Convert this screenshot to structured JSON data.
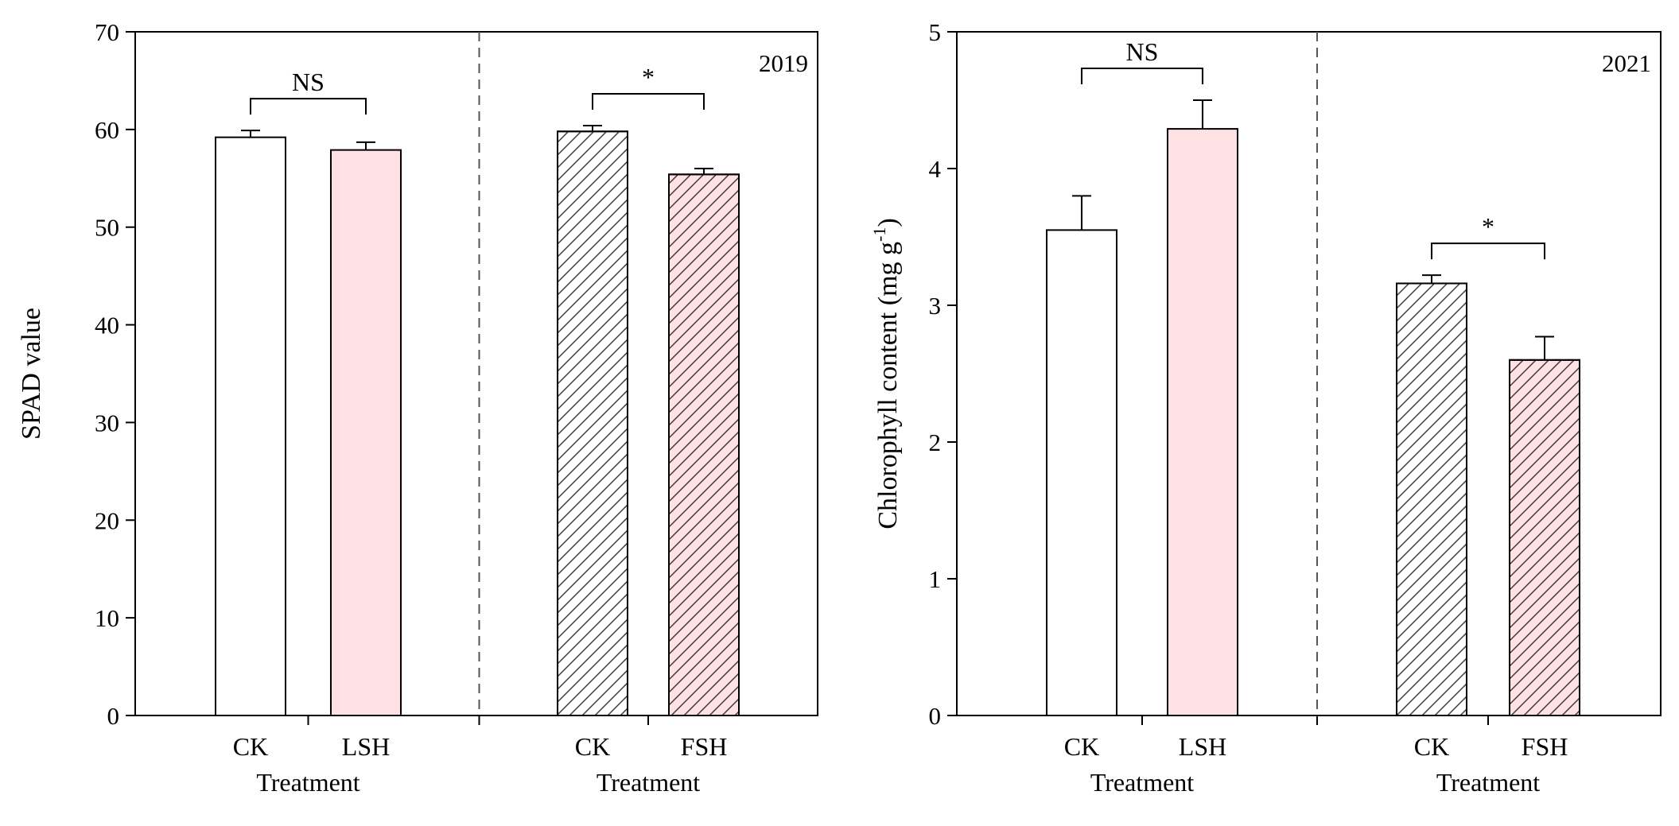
{
  "chart_data": [
    {
      "type": "bar",
      "year_label": "2019",
      "ylabel": "SPAD value",
      "ylim": [
        0,
        70
      ],
      "yticks": [
        0,
        10,
        20,
        30,
        40,
        50,
        60,
        70
      ],
      "groups": [
        {
          "xlabel": "Treatment",
          "significance": "NS",
          "bars": [
            {
              "category": "CK",
              "value": 59.2,
              "error": 0.7,
              "fill": "#ffffff",
              "hatch": false
            },
            {
              "category": "LSH",
              "value": 57.9,
              "error": 0.8,
              "fill": "#ffe0e3",
              "hatch": false
            }
          ]
        },
        {
          "xlabel": "Treatment",
          "significance": "*",
          "bars": [
            {
              "category": "CK",
              "value": 59.8,
              "error": 0.6,
              "fill": "#ffffff",
              "hatch": true
            },
            {
              "category": "FSH",
              "value": 55.4,
              "error": 0.6,
              "fill": "#ffe0e3",
              "hatch": true
            }
          ]
        }
      ]
    },
    {
      "type": "bar",
      "year_label": "2021",
      "ylabel": "Chlorophyll content (mg g",
      "ylabel_superscript": "-1",
      "ylabel_suffix": ")",
      "ylim": [
        0,
        5
      ],
      "yticks": [
        0,
        1,
        2,
        3,
        4,
        5
      ],
      "groups": [
        {
          "xlabel": "Treatment",
          "significance": "NS",
          "bars": [
            {
              "category": "CK",
              "value": 3.55,
              "error": 0.25,
              "fill": "#ffffff",
              "hatch": false
            },
            {
              "category": "LSH",
              "value": 4.29,
              "error": 0.21,
              "fill": "#ffe0e3",
              "hatch": false
            }
          ]
        },
        {
          "xlabel": "Treatment",
          "significance": "*",
          "bars": [
            {
              "category": "CK",
              "value": 3.16,
              "error": 0.06,
              "fill": "#ffffff",
              "hatch": true
            },
            {
              "category": "FSH",
              "value": 2.6,
              "error": 0.17,
              "fill": "#ffe0e3",
              "hatch": true
            }
          ]
        }
      ]
    }
  ]
}
